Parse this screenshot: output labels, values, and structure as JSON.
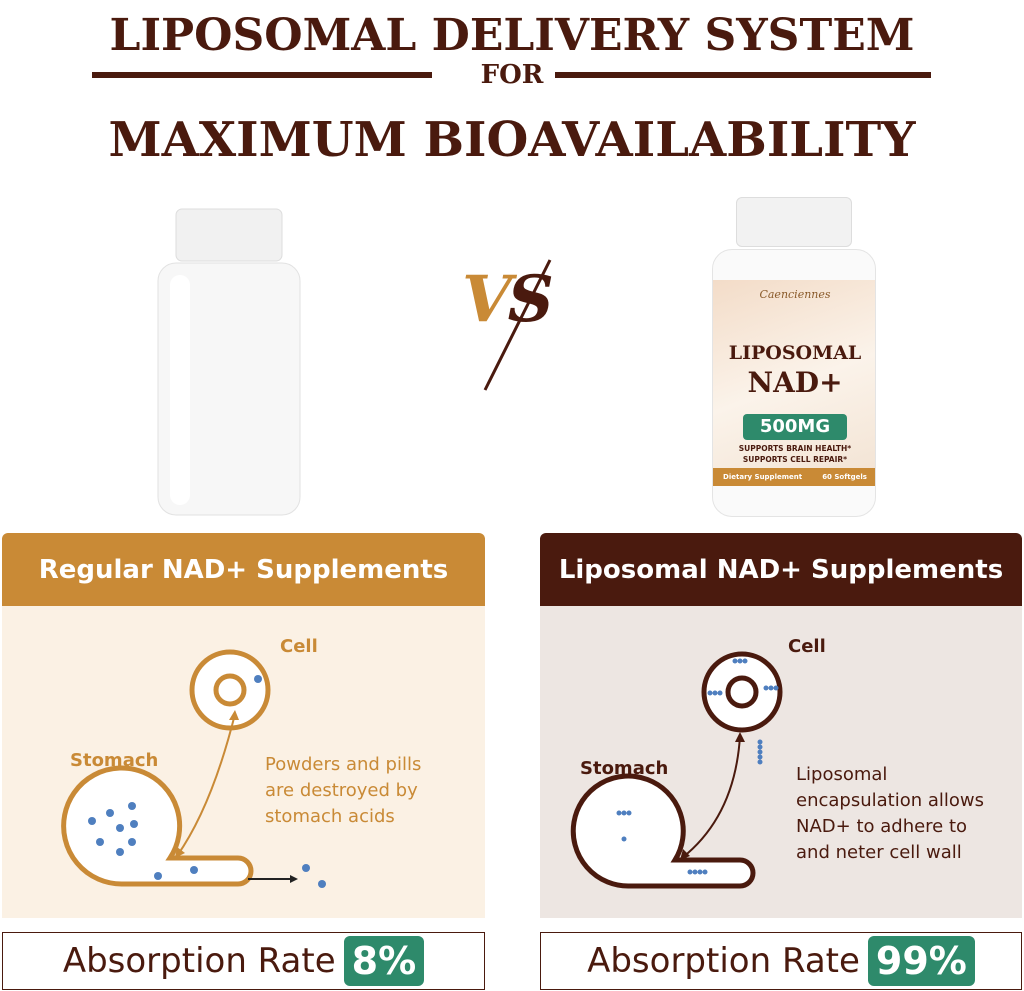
{
  "headline": {
    "line1": "LIPOSOMAL DELIVERY SYSTEM",
    "line2": "FOR",
    "line3": "MAXIMUM BIOAVAILABILITY"
  },
  "vs": "VS",
  "product_label": {
    "brand": "Caenciennes",
    "name1": "LIPOSOMAL",
    "name2": "NAD+",
    "dose": "500MG",
    "claim1": "SUPPORTS BRAIN HEALTH*",
    "claim2": "SUPPORTS CELL REPAIR*",
    "type": "Dietary Supplement",
    "count": "60 Softgels"
  },
  "left": {
    "header": "Regular NAD+ Supplements",
    "cell": "Cell",
    "stomach": "Stomach",
    "description": [
      "Powders and pills",
      "are destroyed by",
      "stomach acids"
    ],
    "rate_label": "Absorption Rate",
    "rate_value": "8%"
  },
  "right": {
    "header": "Liposomal NAD+ Supplements",
    "cell": "Cell",
    "stomach": "Stomach",
    "description": [
      "Liposomal",
      "encapsulation allows",
      "NAD+ to adhere to",
      "and neter cell wall"
    ],
    "rate_label": "Absorption Rate",
    "rate_value": "99%"
  },
  "colors": {
    "brown": "#4a1a0e",
    "gold": "#c98a36",
    "green": "#2e8a6b",
    "dot": "#4f7fbf"
  }
}
